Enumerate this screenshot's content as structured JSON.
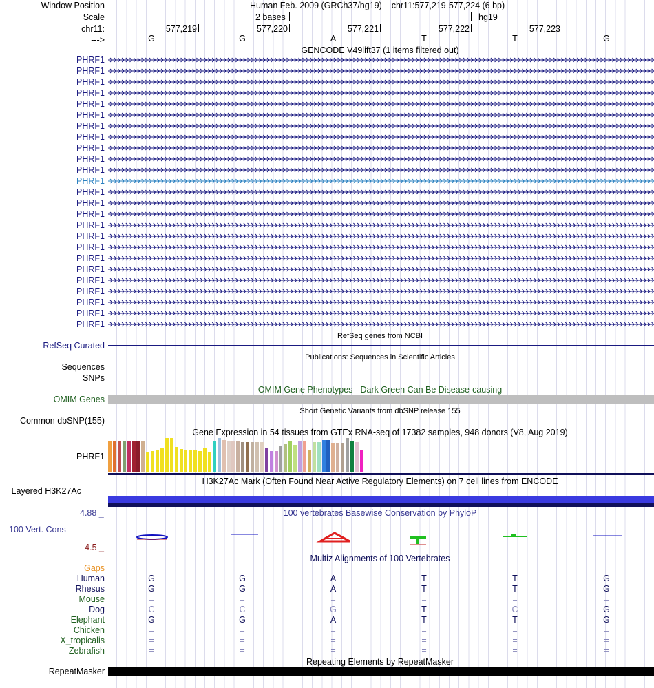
{
  "header": {
    "window_position_label": "Window Position",
    "assembly": "Human Feb. 2009 (GRCh37/hg19)",
    "position": "chr11:577,219-577,224 (6 bp)",
    "scale_label": "Scale",
    "scale_value": "2 bases",
    "scale_db": "hg19",
    "chrom_label": "chr11:",
    "strand_label": "--->",
    "coords": [
      "577,219",
      "577,220",
      "577,221",
      "577,222",
      "577,223"
    ],
    "bases": [
      "G",
      "G",
      "A",
      "T",
      "T",
      "G"
    ]
  },
  "gencode": {
    "title": "GENCODE V49lift37 (1 items filtered out)",
    "genes": [
      "PHRF1",
      "PHRF1",
      "PHRF1",
      "PHRF1",
      "PHRF1",
      "PHRF1",
      "PHRF1",
      "PHRF1",
      "PHRF1",
      "PHRF1",
      "PHRF1",
      "PHRF1",
      "PHRF1",
      "PHRF1",
      "PHRF1",
      "PHRF1",
      "PHRF1",
      "PHRF1",
      "PHRF1",
      "PHRF1",
      "PHRF1",
      "PHRF1",
      "PHRF1",
      "PHRF1",
      "PHRF1"
    ],
    "highlight_index": 11,
    "color": "#1a1a80",
    "highlight_color": "#2a80c0"
  },
  "refseq": {
    "label": "RefSeq Curated",
    "title": "RefSeq genes from NCBI"
  },
  "publications": {
    "title": "Publications: Sequences in Scientific Articles",
    "label_line1": "Sequences",
    "label_line2": "SNPs"
  },
  "omim": {
    "label": "OMIM Genes",
    "title": "OMIM Gene Phenotypes - Dark Green Can Be Disease-causing"
  },
  "dbsnp": {
    "label": "Common dbSNP(155)",
    "title": "Short Genetic Variants from dbSNP release 155"
  },
  "gtex": {
    "title": "Gene Expression in 54 tissues from GTEx RNA-seq of 17382 samples, 948 donors (V8, Aug 2019)",
    "label": "PHRF1",
    "bars": [
      {
        "v": 0.92,
        "c": "#f0a040"
      },
      {
        "v": 0.92,
        "c": "#e07030"
      },
      {
        "v": 0.92,
        "c": "#c05050"
      },
      {
        "v": 0.92,
        "c": "#80a070"
      },
      {
        "v": 0.92,
        "c": "#c03060"
      },
      {
        "v": 0.92,
        "c": "#a02030"
      },
      {
        "v": 0.92,
        "c": "#8b1c2a"
      },
      {
        "v": 0.92,
        "c": "#d0b090"
      },
      {
        "v": 0.6,
        "c": "#f0e020"
      },
      {
        "v": 0.62,
        "c": "#f0e020"
      },
      {
        "v": 0.65,
        "c": "#f0e020"
      },
      {
        "v": 0.72,
        "c": "#f0e020"
      },
      {
        "v": 1.0,
        "c": "#f0e020"
      },
      {
        "v": 1.0,
        "c": "#f0e020"
      },
      {
        "v": 0.74,
        "c": "#f0e020"
      },
      {
        "v": 0.68,
        "c": "#f0e020"
      },
      {
        "v": 0.66,
        "c": "#f0e020"
      },
      {
        "v": 0.66,
        "c": "#f0e020"
      },
      {
        "v": 0.66,
        "c": "#f0e020"
      },
      {
        "v": 0.62,
        "c": "#f0e020"
      },
      {
        "v": 0.72,
        "c": "#f0e020"
      },
      {
        "v": 0.58,
        "c": "#f0e020"
      },
      {
        "v": 0.92,
        "c": "#30d0c0"
      },
      {
        "v": 1.0,
        "c": "#a0c0e0"
      },
      {
        "v": 0.94,
        "c": "#e0c0b0"
      },
      {
        "v": 0.9,
        "c": "#e0d0c8"
      },
      {
        "v": 0.9,
        "c": "#e0c8c0"
      },
      {
        "v": 0.9,
        "c": "#c8b0a0"
      },
      {
        "v": 0.88,
        "c": "#a09080"
      },
      {
        "v": 0.88,
        "c": "#907050"
      },
      {
        "v": 0.88,
        "c": "#c0b0a0"
      },
      {
        "v": 0.88,
        "c": "#d0c0b0"
      },
      {
        "v": 0.88,
        "c": "#e0d0c0"
      },
      {
        "v": 0.7,
        "c": "#8040a0"
      },
      {
        "v": 0.62,
        "c": "#c080e0"
      },
      {
        "v": 0.62,
        "c": "#d090d0"
      },
      {
        "v": 0.78,
        "c": "#a0a0a0"
      },
      {
        "v": 0.82,
        "c": "#b0c080"
      },
      {
        "v": 0.92,
        "c": "#a0d060"
      },
      {
        "v": 0.8,
        "c": "#c0e080"
      },
      {
        "v": 0.92,
        "c": "#c0a0e0"
      },
      {
        "v": 0.92,
        "c": "#f0a090"
      },
      {
        "v": 0.64,
        "c": "#d0b060"
      },
      {
        "v": 0.88,
        "c": "#c0e0a0"
      },
      {
        "v": 0.88,
        "c": "#a0e0c0"
      },
      {
        "v": 0.94,
        "c": "#3080e0"
      },
      {
        "v": 0.94,
        "c": "#2060c0"
      },
      {
        "v": 0.86,
        "c": "#e0b090"
      },
      {
        "v": 0.86,
        "c": "#d0b0a0"
      },
      {
        "v": 0.86,
        "c": "#b0a090"
      },
      {
        "v": 1.0,
        "c": "#a0a0a0"
      },
      {
        "v": 0.92,
        "c": "#108040"
      },
      {
        "v": 0.88,
        "c": "#e0c0d0"
      },
      {
        "v": 0.64,
        "c": "#f020c0"
      }
    ]
  },
  "h3k27ac": {
    "title": "H3K27Ac Mark (Often Found Near Active Regulatory Elements) on 7 cell lines from ENCODE",
    "label": "Layered H3K27Ac"
  },
  "phylop": {
    "title": "100 vertebrates Basewise Conservation by PhyloP",
    "label": "100 Vert. Cons",
    "max": "4.88 _",
    "min": "-4.5 _"
  },
  "multiz": {
    "title": "Multiz Alignments of 100 Vertebrates",
    "gaps_label": "Gaps",
    "species": [
      {
        "name": "Human",
        "color": "#10105a",
        "bases": [
          "G",
          "G",
          "A",
          "T",
          "T",
          "G"
        ],
        "bc": "#10105a"
      },
      {
        "name": "Rhesus",
        "color": "#10105a",
        "bases": [
          "G",
          "G",
          "A",
          "T",
          "T",
          "G"
        ],
        "bc": "#10105a"
      },
      {
        "name": "Mouse",
        "color": "#206020",
        "bases": [
          "=",
          "=",
          "=",
          "=",
          "=",
          "="
        ],
        "bc": "#8888bb"
      },
      {
        "name": "Dog",
        "color": "#10105a",
        "bases": [
          "C",
          "C",
          "G",
          "T",
          "C",
          "G"
        ],
        "bc": "mixed"
      },
      {
        "name": "Elephant",
        "color": "#206020",
        "bases": [
          "G",
          "G",
          "A",
          "T",
          "T",
          "G"
        ],
        "bc": "#10105a"
      },
      {
        "name": "Chicken",
        "color": "#206020",
        "bases": [
          "=",
          "=",
          "=",
          "=",
          "=",
          "="
        ],
        "bc": "#8888bb"
      },
      {
        "name": "X_tropicalis",
        "color": "#206020",
        "bases": [
          "=",
          "=",
          "=",
          "=",
          "=",
          "="
        ],
        "bc": "#8888bb"
      },
      {
        "name": "Zebrafish",
        "color": "#206020",
        "bases": [
          "=",
          "=",
          "=",
          "=",
          "=",
          "="
        ],
        "bc": "#8888bb"
      }
    ]
  },
  "repeatmasker": {
    "title": "Repeating Elements by RepeatMasker",
    "label": "RepeatMasker"
  }
}
